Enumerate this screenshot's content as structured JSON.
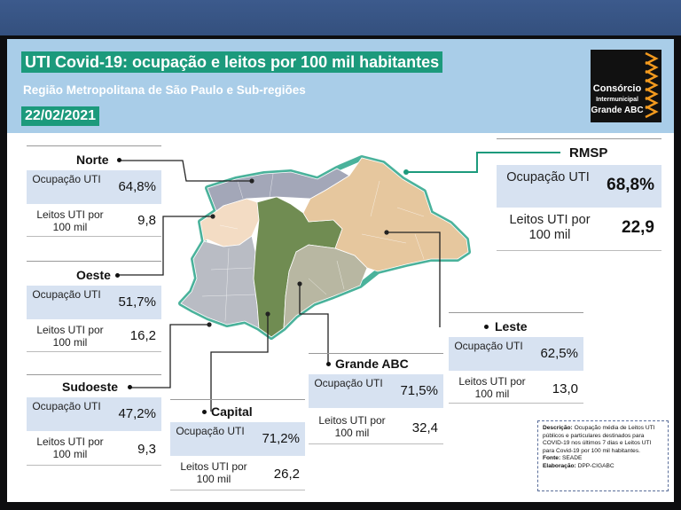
{
  "title": "UTI Covid-19: ocupação e leitos por 100 mil habitantes",
  "subtitle": "Região Metropolitana de São Paulo e Sub-regiões",
  "date": "22/02/2021",
  "logo": {
    "line1": "Consórcio",
    "line2": "Intermunicipal",
    "line3": "Grande ABC",
    "icon": "orange-stripes-icon"
  },
  "colors": {
    "header_bg": "#a9cde8",
    "title_bg": "#1c9a7c",
    "region_norte": "#a3a7b8",
    "region_oeste": "#f3dcc4",
    "region_sudoeste": "#b9bcc4",
    "region_capital": "#708c52",
    "region_grande_abc": "#b8b7a2",
    "region_leste": "#e6c79e",
    "map_outline": "#2aa58a"
  },
  "regions": {
    "rmsp": {
      "name": "RMSP",
      "occ_label": "Ocupação UTI",
      "occ_value": "68,8%",
      "beds_label": "Leitos UTI por 100 mil",
      "beds_value": "22,9"
    },
    "norte": {
      "name": "Norte",
      "occ_label": "Ocupação UTI",
      "occ_value": "64,8%",
      "beds_label": "Leitos UTI por 100 mil",
      "beds_value": "9,8"
    },
    "oeste": {
      "name": "Oeste",
      "occ_label": "Ocupação UTI",
      "occ_value": "51,7%",
      "beds_label": "Leitos UTI por 100 mil",
      "beds_value": "16,2"
    },
    "sudoeste": {
      "name": "Sudoeste",
      "occ_label": "Ocupação UTI",
      "occ_value": "47,2%",
      "beds_label": "Leitos UTI por 100 mil",
      "beds_value": "9,3"
    },
    "capital": {
      "name": "Capital",
      "occ_label": "Ocupação UTI",
      "occ_value": "71,2%",
      "beds_label": "Leitos UTI por 100 mil",
      "beds_value": "26,2"
    },
    "grande_abc": {
      "name": "Grande ABC",
      "occ_label": "Ocupação UTI",
      "occ_value": "71,5%",
      "beds_label": "Leitos UTI por 100 mil",
      "beds_value": "32,4"
    },
    "leste": {
      "name": "Leste",
      "occ_label": "Ocupação UTI",
      "occ_value": "62,5%",
      "beds_label": "Leitos UTI por 100 mil",
      "beds_value": "13,0"
    }
  },
  "description": {
    "label": "Descrição:",
    "text": "Ocupação média de Leitos UTI públicos e particulares destinados para COVID-19 nos últimos 7 dias e Leitos UTI para Covid-19 por 100 mil habitantes.",
    "source_label": "Fonte:",
    "source": "SEADE",
    "elaboration_label": "Elaboração:",
    "elaboration": "DPP-CIGABC"
  }
}
